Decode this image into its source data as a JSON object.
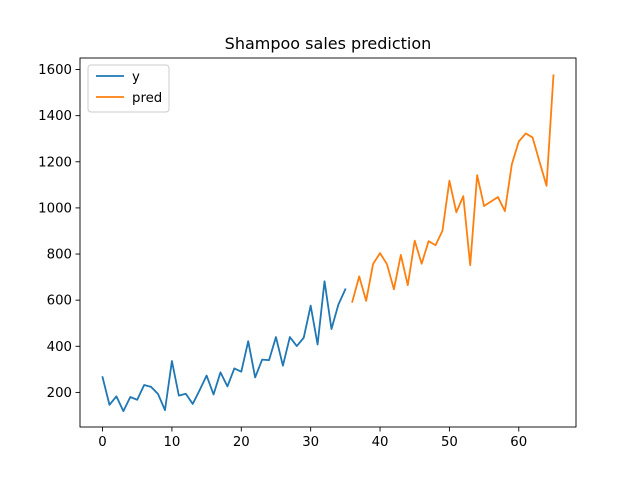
{
  "chart_data": {
    "type": "line",
    "title": "Shampoo sales prediction",
    "xlabel": "",
    "ylabel": "",
    "xlim": [
      -3.25,
      68.25
    ],
    "ylim": [
      50,
      1650
    ],
    "xticks": [
      0,
      10,
      20,
      30,
      40,
      50,
      60
    ],
    "yticks": [
      200,
      400,
      600,
      800,
      1000,
      1200,
      1400,
      1600
    ],
    "grid": false,
    "legend_position": "top-left",
    "series": [
      {
        "name": "y",
        "color": "#1f77b4",
        "x": [
          0,
          1,
          2,
          3,
          4,
          5,
          6,
          7,
          8,
          9,
          10,
          11,
          12,
          13,
          14,
          15,
          16,
          17,
          18,
          19,
          20,
          21,
          22,
          23,
          24,
          25,
          26,
          27,
          28,
          29,
          30,
          31,
          32,
          33,
          34,
          35
        ],
        "y": [
          266,
          146,
          183,
          119,
          180,
          168,
          232,
          224,
          193,
          123,
          336,
          186,
          194,
          150,
          210,
          273,
          191,
          287,
          226,
          304,
          290,
          422,
          265,
          342,
          340,
          440,
          316,
          440,
          401,
          437,
          576,
          408,
          682,
          475,
          581,
          647
        ]
      },
      {
        "name": "pred",
        "color": "#ff7f0e",
        "x": [
          36,
          37,
          38,
          39,
          40,
          41,
          42,
          43,
          44,
          45,
          46,
          47,
          48,
          49,
          50,
          51,
          52,
          53,
          54,
          55,
          56,
          57,
          58,
          59,
          60,
          61,
          62,
          63,
          64,
          65
        ],
        "y": [
          593,
          703,
          597,
          757,
          804,
          756,
          647,
          796,
          665,
          858,
          758,
          856,
          838,
          901,
          1118,
          981,
          1051,
          752,
          1142,
          1008,
          1028,
          1047,
          986,
          1189,
          1288,
          1323,
          1305,
          1199,
          1096,
          1575
        ]
      }
    ]
  }
}
